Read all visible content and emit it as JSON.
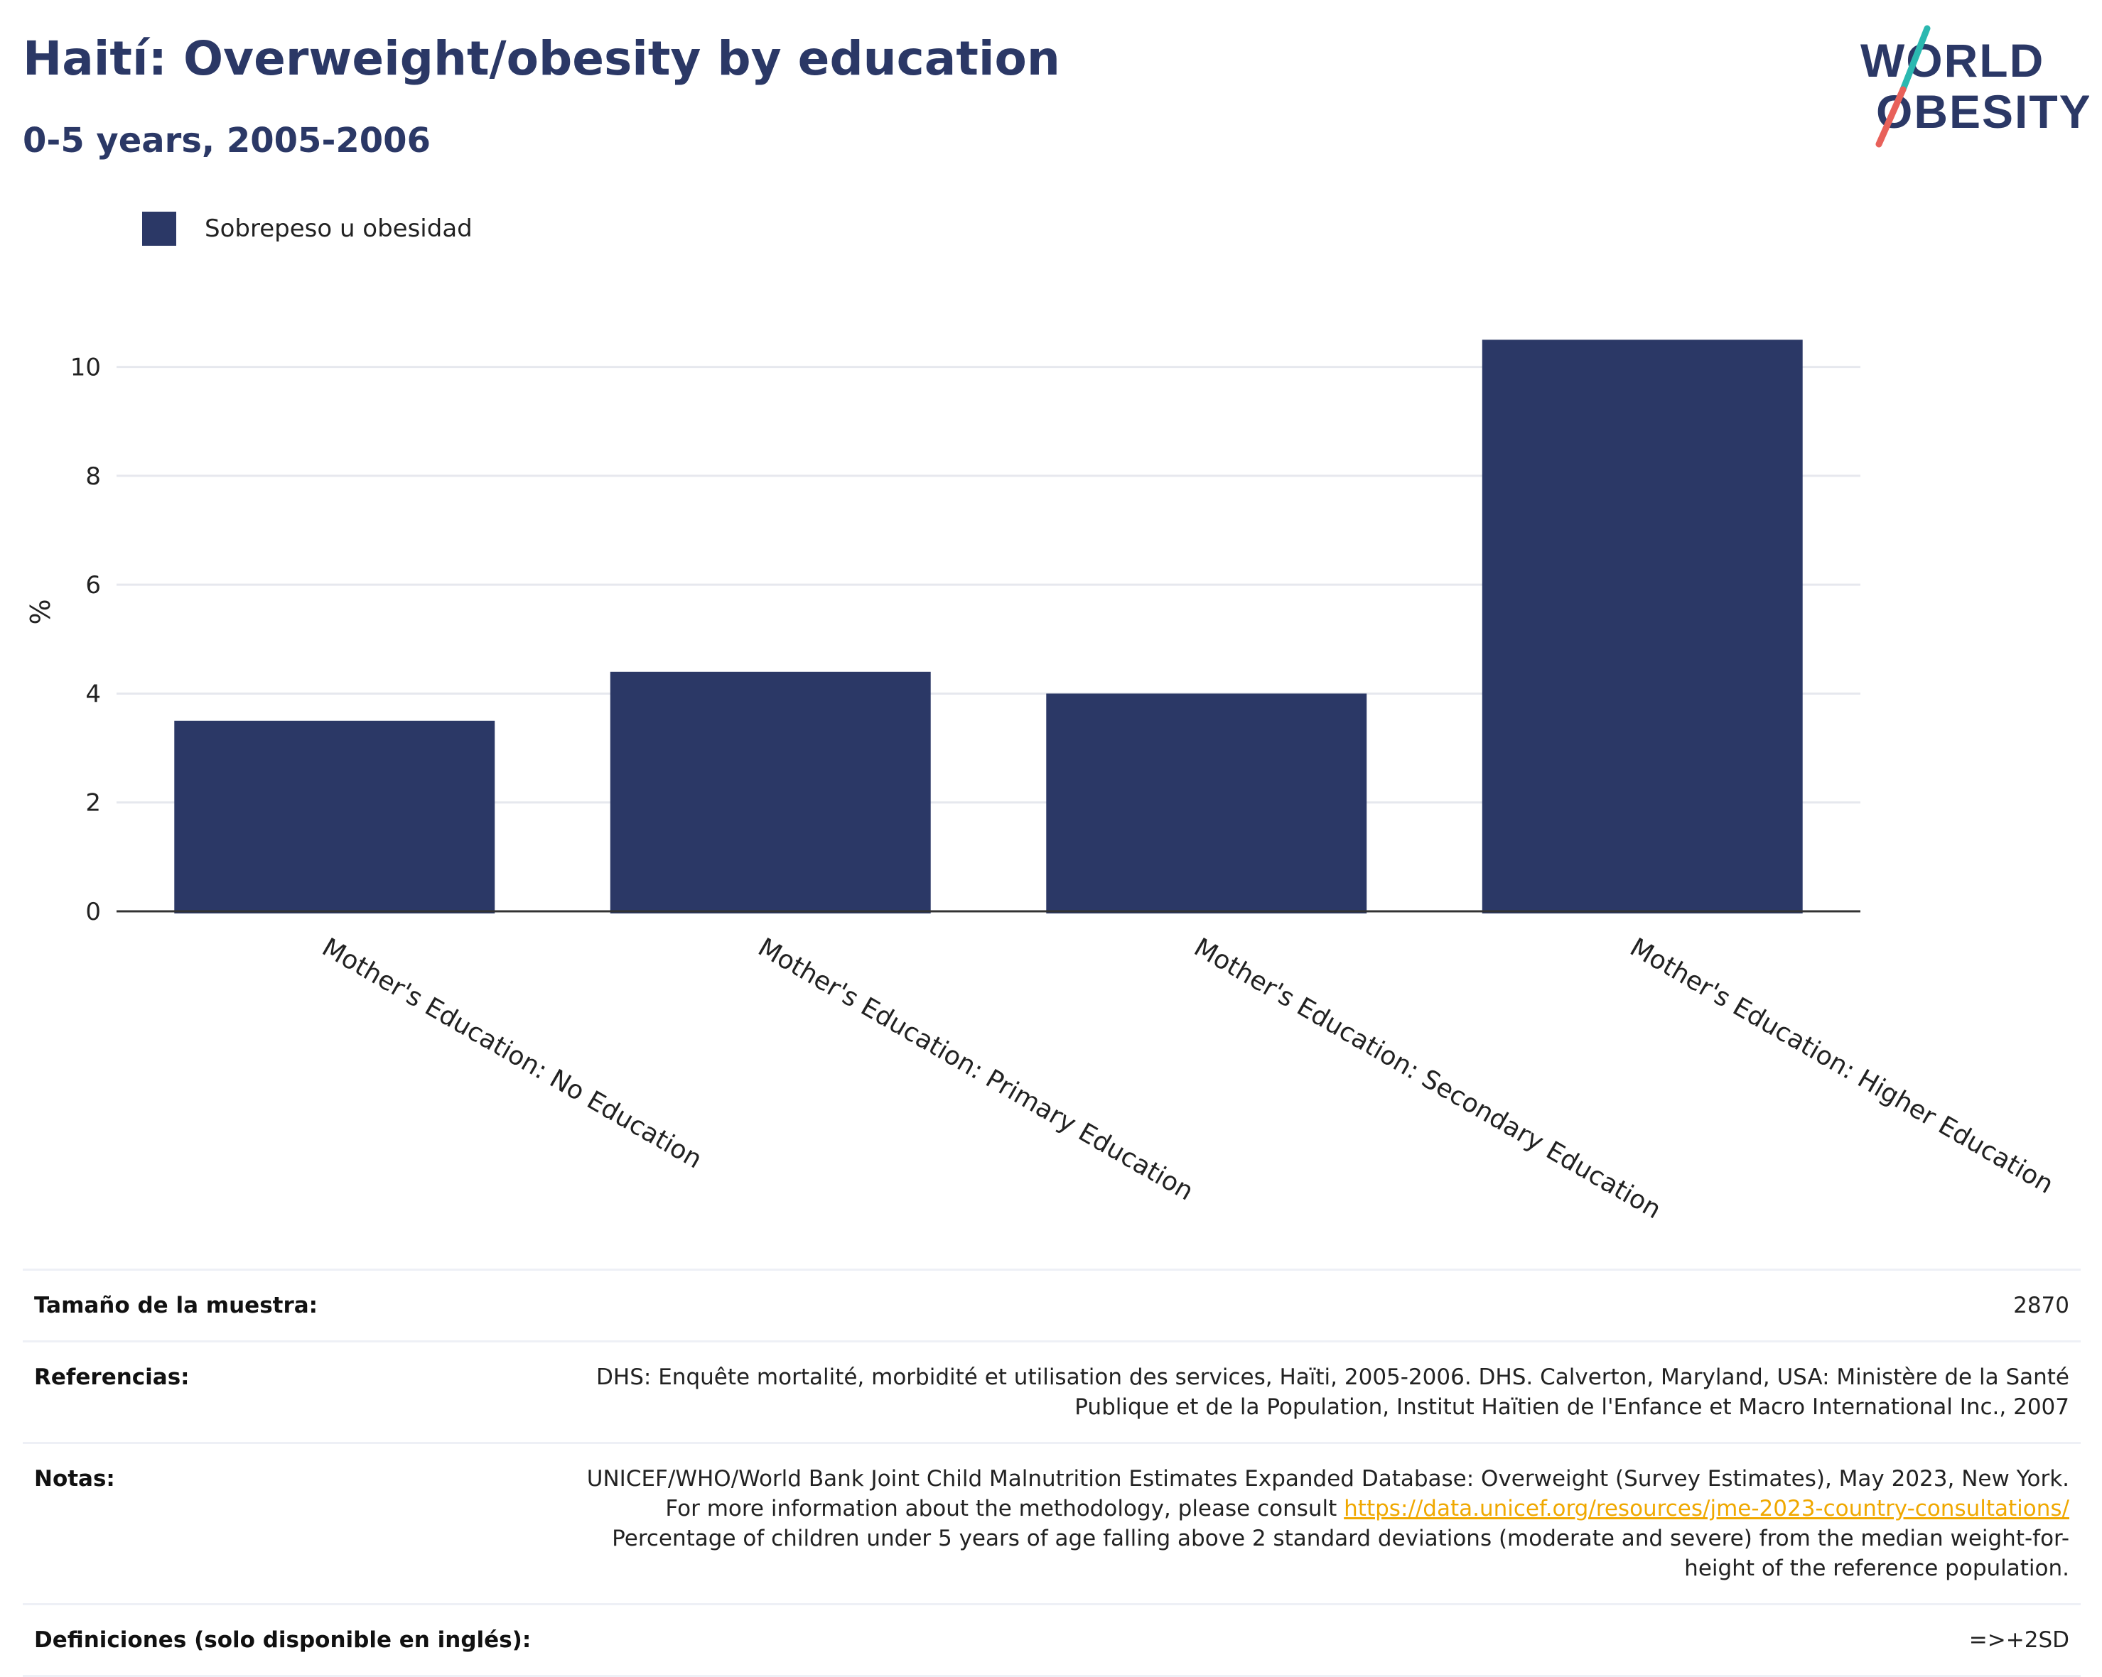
{
  "header": {
    "title": "Haití: Overweight/obesity by education",
    "subtitle": "0-5 years, 2005-2006"
  },
  "logo": {
    "line1": "WORLD",
    "line2": "OBESITY",
    "colors": {
      "text": "#2b3866",
      "slash_top": "#2bb8b0",
      "slash_bottom": "#e8615a"
    }
  },
  "colors": {
    "bar": "#2b3866",
    "grid": "#e6e8ee",
    "axis": "#333333",
    "link": "#f0a800"
  },
  "chart_data": {
    "type": "bar",
    "categories": [
      "Mother's Education: No Education",
      "Mother's Education: Primary Education",
      "Mother's Education: Secondary Education",
      "Mother's Education: Higher Education"
    ],
    "series": [
      {
        "name": "Sobrepeso u obesidad",
        "values": [
          3.5,
          4.4,
          4.0,
          10.5
        ]
      }
    ],
    "ylabel": "%",
    "ylim": [
      0,
      11
    ],
    "yticks": [
      0,
      2,
      4,
      6,
      8,
      10
    ],
    "grid": true,
    "legend_position": "top-left"
  },
  "meta": {
    "sample_label": "Tamaño de la muestra:",
    "sample_value": "2870",
    "refs_label": "Referencias:",
    "refs_value": "DHS: Enquête mortalité, morbidité et utilisation des services, Haïti, 2005-2006. DHS. Calverton, Maryland, USA: Ministère de la Santé Publique et de la Population, Institut Haïtien de l'Enfance et Macro International Inc., 2007",
    "notes_label": "Notas:",
    "notes_text_before": "UNICEF/WHO/World Bank Joint Child Malnutrition Estimates Expanded Database: Overweight (Survey Estimates), May 2023, New York. For more information about the methodology, please consult ",
    "notes_link": "https://data.unicef.org/resources/jme-2023-country-consultations/",
    "notes_text_after": " Percentage of children under 5 years of age falling above 2 standard deviations (moderate and severe) from the median weight-for-height of the reference population.",
    "defs_label": "Definiciones (solo disponible en inglés):",
    "defs_value": "=>+2SD"
  }
}
